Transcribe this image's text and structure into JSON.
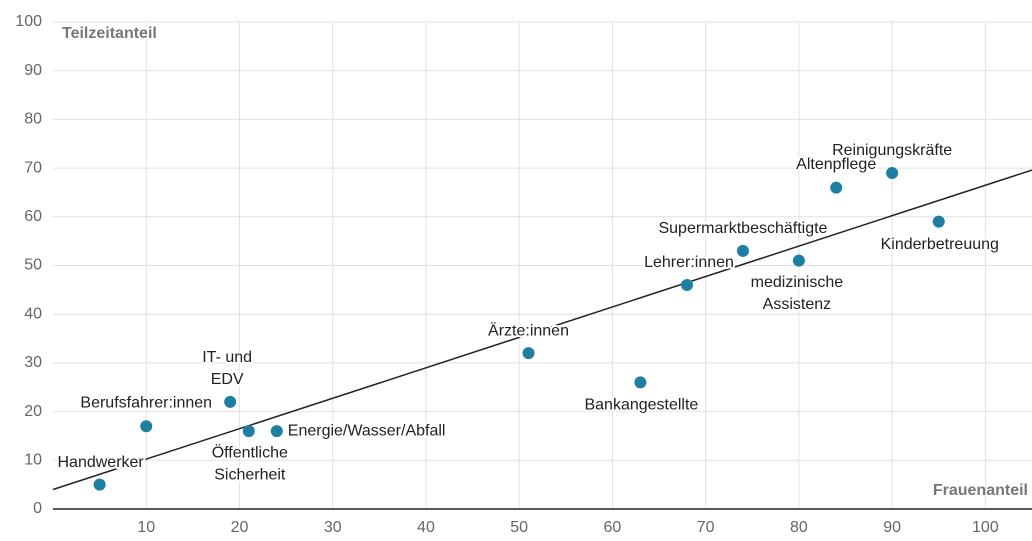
{
  "chart_data": {
    "type": "scatter",
    "y_label": "Teilzeitanteil",
    "x_label": "Frauenanteil",
    "xlim": [
      0,
      105
    ],
    "ylim": [
      0,
      100
    ],
    "xticks": [
      10,
      20,
      30,
      40,
      50,
      60,
      70,
      80,
      90,
      100
    ],
    "yticks": [
      0,
      10,
      20,
      30,
      40,
      50,
      60,
      70,
      80,
      90,
      100
    ],
    "grid": true,
    "series": [
      {
        "color": "#1f7fa3",
        "labels": [
          [
            "Handwerker"
          ],
          [
            "Berufsfahrer:innen"
          ],
          [
            "IT- und",
            "EDV"
          ],
          [
            "Öffentliche",
            "Sicherheit"
          ],
          [
            "Energie/Wasser/Abfall"
          ],
          [
            "Ärzte:innen"
          ],
          [
            "Bankangestellte"
          ],
          [
            "Lehrer:innen"
          ],
          [
            "Supermarktbeschäftigte"
          ],
          [
            "medizinische",
            "Assistenz"
          ],
          [
            "Altenpflege"
          ],
          [
            "Reinigungskräfte"
          ],
          [
            "Kinderbetreuung"
          ]
        ],
        "x": [
          5,
          10,
          19,
          21,
          24,
          51,
          63,
          68,
          74,
          80,
          84,
          90,
          95
        ],
        "values": [
          5,
          17,
          22,
          16,
          16,
          32,
          26,
          46,
          53,
          51,
          66,
          69,
          59
        ]
      }
    ],
    "trendline": {
      "color": "#222222",
      "x": [
        0,
        105
      ],
      "values": [
        4,
        69.6
      ]
    }
  }
}
